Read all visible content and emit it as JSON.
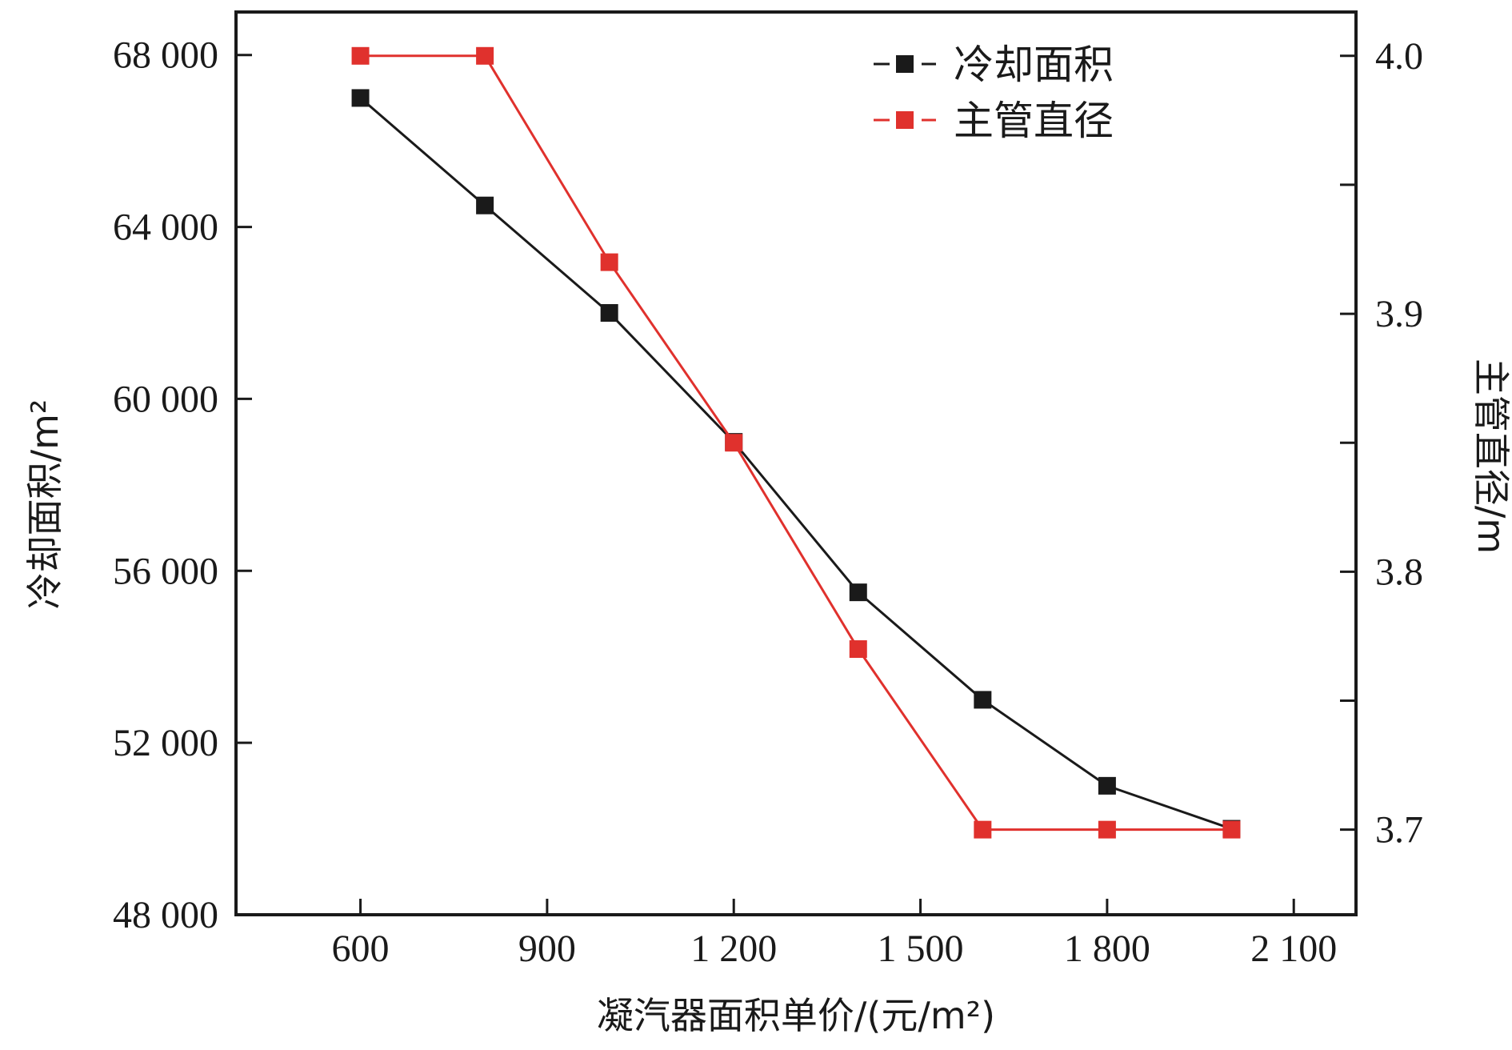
{
  "chart_data": {
    "type": "line",
    "x": [
      600,
      800,
      1000,
      1200,
      1400,
      1600,
      1800,
      2000
    ],
    "xlim": [
      400,
      2200
    ],
    "x_ticks": [
      600,
      900,
      1200,
      1500,
      1800,
      2100
    ],
    "x_tick_labels": [
      "600",
      "900",
      "1 200",
      "1 500",
      "1 800",
      "2 100"
    ],
    "xlabel": "凝汽器面积单价/(元/m²)",
    "ylim_left": [
      48000,
      69000
    ],
    "y_left_ticks": [
      48000,
      52000,
      56000,
      60000,
      64000,
      68000
    ],
    "y_left_tick_labels": [
      "48 000",
      "52 000",
      "56 000",
      "60 000",
      "64 000",
      "68 000"
    ],
    "ylabel_left": "冷却面积/m²",
    "ylim_right": [
      3.667,
      4.017
    ],
    "y_right_ticks": [
      3.7,
      3.75,
      3.8,
      3.85,
      3.9,
      3.95,
      4.0
    ],
    "y_right_tick_labels": [
      "3.7",
      "",
      "3.8",
      "",
      "3.9",
      "",
      "4.0"
    ],
    "ylabel_right": "主管直径/m",
    "legend_position": "top-right",
    "series": [
      {
        "name": "冷却面积",
        "axis": "left",
        "color": "#1a1a1a",
        "values": [
          67000,
          64500,
          62000,
          59000,
          55500,
          53000,
          51000,
          50000
        ]
      },
      {
        "name": "主管直径",
        "axis": "right",
        "color": "#e0312d",
        "values": [
          4.0,
          4.0,
          3.92,
          3.85,
          3.77,
          3.7,
          3.7,
          3.7
        ]
      }
    ]
  }
}
